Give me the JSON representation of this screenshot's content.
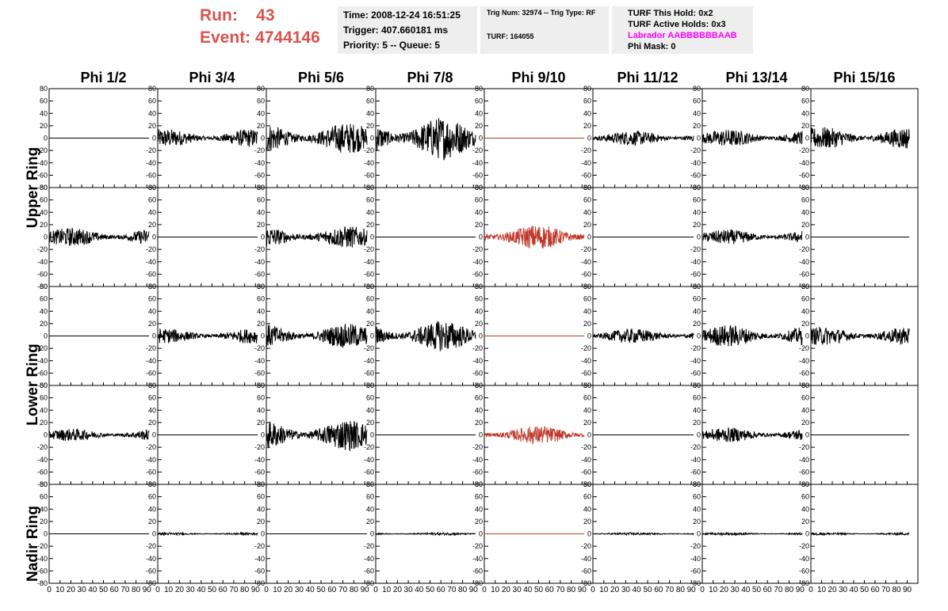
{
  "header": {
    "run_label": "Run:",
    "run_value": "43",
    "event_label": "Event:",
    "event_value": "4744146"
  },
  "info_time": {
    "line1": "Time: 2008-12-24 16:51:25",
    "line2": "Trigger: 407.660181 ms",
    "line3": "Priority: 5 -- Queue: 5"
  },
  "info_trig": {
    "line1": "Trig Num: 32974 -- Trig Type: RF",
    "line2": "TURF: 164055"
  },
  "info_turf": {
    "line1": "TURF This Hold: 0x2",
    "line2": "TURF Active Holds: 0x3",
    "line3": "Labrador AABBBBBBAAB",
    "line4": "Phi Mask: 0",
    "magenta": "#ff00ff"
  },
  "chart_data": {
    "type": "line",
    "columns": [
      "Phi 1/2",
      "Phi 3/4",
      "Phi 5/6",
      "Phi 7/8",
      "Phi 9/10",
      "Phi 11/12",
      "Phi 13/14",
      "Phi 15/16"
    ],
    "ring_labels": [
      {
        "label": "Upper Ring",
        "rows": [
          0,
          1
        ]
      },
      {
        "label": "Lower Ring",
        "rows": [
          2,
          3
        ]
      },
      {
        "label": "Nadir Ring",
        "rows": [
          4
        ]
      }
    ],
    "xlim": [
      0,
      100
    ],
    "ylim": [
      -80,
      80
    ],
    "x_ticks": [
      0,
      10,
      20,
      30,
      40,
      50,
      60,
      70,
      80,
      90
    ],
    "x_tick_labels_first_panel": [
      "0",
      "10",
      "20",
      "30",
      "40",
      "50",
      "60",
      "70",
      "80",
      "90"
    ],
    "y_ticks": [
      -80,
      -60,
      -40,
      -20,
      0,
      20,
      40,
      60,
      80
    ],
    "trace_color_default": "#000000",
    "trace_color_trigger": "#c0392b",
    "amplitudes": [
      [
        0,
        15,
        25,
        35,
        0,
        12,
        14,
        18
      ],
      [
        15,
        0,
        18,
        0,
        20,
        0,
        12,
        0
      ],
      [
        0,
        12,
        20,
        25,
        0,
        12,
        18,
        15
      ],
      [
        10,
        0,
        25,
        0,
        15,
        0,
        12,
        0
      ],
      [
        0,
        2,
        0,
        2,
        0,
        2,
        2,
        2
      ]
    ],
    "highlighted_column": 4,
    "description_note": ""
  }
}
